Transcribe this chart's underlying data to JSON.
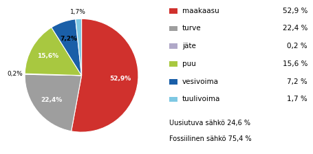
{
  "labels": [
    "maakaasu",
    "turve",
    "jäte",
    "puu",
    "vesivoima",
    "tuulivoima"
  ],
  "values": [
    52.9,
    22.4,
    0.2,
    15.6,
    7.2,
    1.7
  ],
  "colors": [
    "#d0312d",
    "#9e9e9e",
    "#b0a8c8",
    "#a8c840",
    "#1a5fa8",
    "#7ec8e3"
  ],
  "pct_labels": [
    "52,9%",
    "22,4%",
    "0,2%",
    "15,6%",
    "7,2%",
    "1,7%"
  ],
  "legend_labels": [
    "maakaasu",
    "turve",
    "jäte",
    "puu",
    "vesivoima",
    "tuulivoima"
  ],
  "legend_pcts": [
    "52,9 %",
    "22,4 %",
    "0,2 %",
    "15,6 %",
    "7,2 %",
    "1,7 %"
  ],
  "note_line1": "Uusiutuva sähkö 24,6 %",
  "note_line2": "Fossiilinen sähkö 75,4 %",
  "startangle": 90,
  "bg_color": "#ffffff"
}
